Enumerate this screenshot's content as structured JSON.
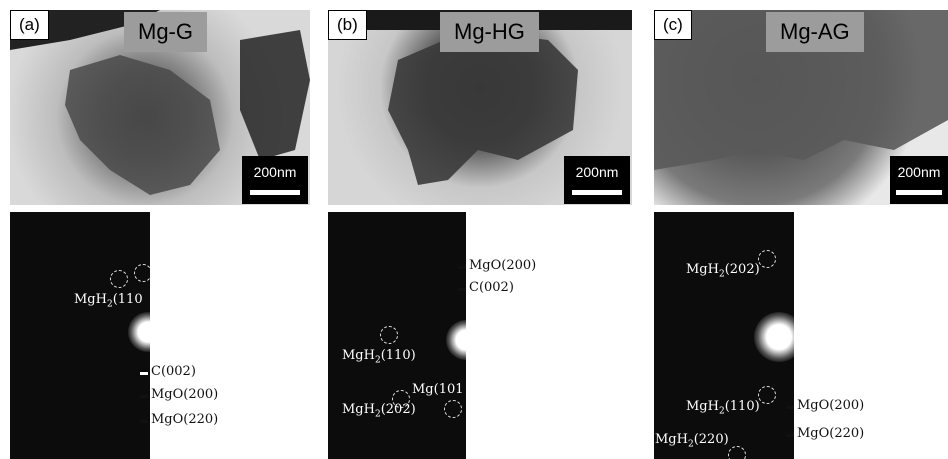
{
  "panels": [
    {
      "letter": "(a)",
      "name": "Mg-G",
      "scale": "200nm"
    },
    {
      "letter": "(b)",
      "name": "Mg-HG",
      "scale": "200nm"
    },
    {
      "letter": "(c)",
      "name": "Mg-AG",
      "scale": "200nm"
    }
  ],
  "diffraction": {
    "a": {
      "labels": [
        "MgH",
        "2",
        "(110",
        "C(002)",
        "MgO(200)",
        "MgO(220)"
      ]
    },
    "b": {
      "labels": [
        "MgO(200)",
        "C(002)",
        "MgH",
        "2",
        "(110)",
        "Mg(101",
        "MgH",
        "2",
        "(202)"
      ]
    },
    "c": {
      "labels": [
        "MgH",
        "2",
        "(202)",
        "MgH",
        "2",
        "(110)",
        "MgO(200)",
        "MgO(220)",
        "MgH",
        "2",
        "(220)"
      ]
    }
  }
}
